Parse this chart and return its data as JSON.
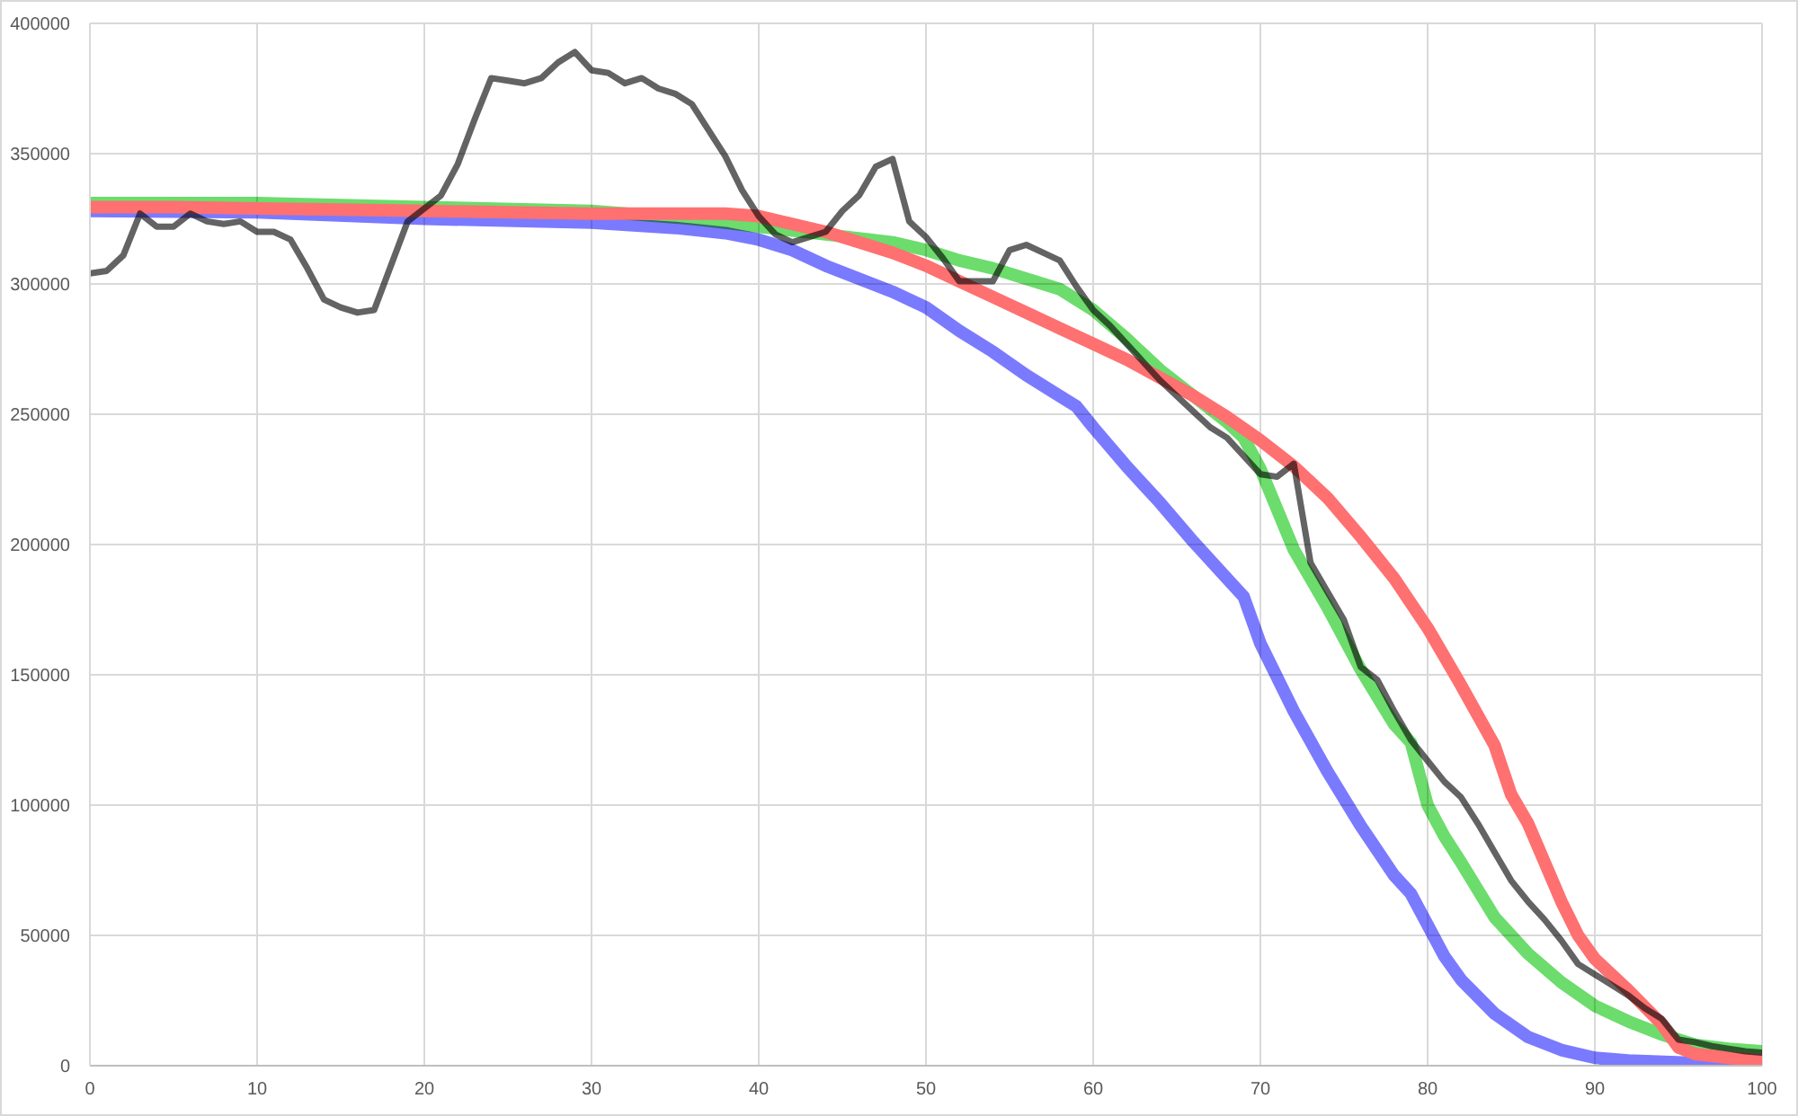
{
  "chart_data": {
    "type": "line",
    "xlim": [
      0,
      100
    ],
    "xticks": [
      0,
      10,
      20,
      30,
      40,
      50,
      60,
      70,
      80,
      90,
      100
    ],
    "ylim": [
      0,
      400000
    ],
    "yticks": [
      0,
      50000,
      100000,
      150000,
      200000,
      250000,
      300000,
      350000,
      400000
    ],
    "grid": true,
    "line_style": "solid",
    "series": [
      {
        "color": "#7a7aff",
        "x": [
          0,
          10,
          20,
          30,
          35,
          38,
          40,
          42,
          44,
          46,
          48,
          50,
          52,
          54,
          56,
          58,
          59,
          60,
          62,
          64,
          66,
          68,
          69,
          70,
          72,
          74,
          76,
          78,
          79,
          80,
          81,
          82,
          84,
          86,
          88,
          90,
          92,
          96,
          100
        ],
        "values": [
          328000,
          327500,
          325000,
          323500,
          321500,
          319500,
          317000,
          313000,
          307000,
          302000,
          297000,
          291000,
          282000,
          274000,
          265000,
          257000,
          253000,
          245000,
          230000,
          216000,
          201000,
          187000,
          180000,
          162000,
          136000,
          113000,
          92000,
          73000,
          66000,
          54000,
          42000,
          33000,
          20000,
          11000,
          6000,
          3000,
          2000,
          1000,
          1000
        ]
      },
      {
        "color": "#6cdc6c",
        "x": [
          0,
          10,
          20,
          30,
          36,
          40,
          44,
          48,
          50,
          52,
          54,
          56,
          58,
          60,
          62,
          64,
          66,
          68,
          69,
          70,
          72,
          74,
          76,
          78,
          79,
          80,
          81,
          82,
          84,
          86,
          88,
          90,
          92,
          94,
          96,
          98,
          100
        ],
        "values": [
          331000,
          331000,
          329500,
          328000,
          325000,
          322000,
          319000,
          316000,
          313000,
          309000,
          306000,
          302000,
          298000,
          290000,
          279000,
          267000,
          257000,
          247000,
          241000,
          229000,
          198000,
          176000,
          152000,
          131000,
          124000,
          100000,
          88000,
          78000,
          57000,
          43000,
          32000,
          23000,
          17000,
          12000,
          8000,
          6500,
          5500
        ]
      },
      {
        "color": "#ff7070",
        "x": [
          0,
          5,
          10,
          15,
          20,
          25,
          30,
          35,
          38,
          40,
          42,
          44,
          46,
          48,
          50,
          52,
          54,
          56,
          58,
          60,
          62,
          64,
          66,
          68,
          70,
          72,
          74,
          76,
          78,
          80,
          82,
          84,
          85,
          86,
          88,
          89,
          90,
          92,
          94,
          95,
          96,
          98,
          100
        ],
        "values": [
          329500,
          329500,
          329000,
          328500,
          328000,
          327500,
          327000,
          327000,
          327000,
          326000,
          323000,
          320000,
          316000,
          312000,
          307000,
          301000,
          295000,
          289000,
          283000,
          277000,
          271000,
          264000,
          257000,
          249000,
          240000,
          230000,
          218000,
          203000,
          187000,
          168000,
          146000,
          123000,
          104000,
          93000,
          63000,
          50000,
          41000,
          29000,
          16000,
          7000,
          4500,
          3000,
          2000
        ]
      },
      {
        "color": "#636363",
        "x": [
          0,
          1,
          2,
          3,
          4,
          5,
          6,
          7,
          8,
          9,
          10,
          11,
          12,
          13,
          14,
          15,
          16,
          17,
          18,
          19,
          20,
          21,
          22,
          23,
          24,
          25,
          26,
          27,
          28,
          29,
          30,
          31,
          32,
          33,
          34,
          35,
          36,
          37,
          38,
          39,
          40,
          41,
          42,
          43,
          44,
          45,
          46,
          47,
          48,
          49,
          50,
          51,
          52,
          53,
          54,
          55,
          56,
          57,
          58,
          59,
          60,
          61,
          62,
          63,
          64,
          65,
          66,
          67,
          68,
          69,
          70,
          71,
          72,
          73,
          74,
          75,
          76,
          77,
          78,
          79,
          80,
          81,
          82,
          83,
          84,
          85,
          86,
          87,
          88,
          89,
          90,
          91,
          92,
          93,
          94,
          95,
          96,
          97,
          98,
          99,
          100
        ],
        "values": [
          304000,
          305000,
          311000,
          327000,
          322000,
          322000,
          327000,
          324000,
          323000,
          324000,
          320000,
          320000,
          317000,
          306000,
          294000,
          291000,
          289000,
          290000,
          307000,
          324000,
          329000,
          334000,
          346000,
          363000,
          379000,
          378000,
          377000,
          379000,
          385000,
          389000,
          382000,
          381000,
          377000,
          379000,
          375000,
          373000,
          369000,
          359000,
          349000,
          336000,
          326000,
          319000,
          316000,
          318000,
          320000,
          328000,
          334000,
          345000,
          348000,
          324000,
          318000,
          310000,
          301000,
          301000,
          301000,
          313000,
          315000,
          312000,
          309000,
          299000,
          290000,
          284000,
          277000,
          270000,
          263000,
          257000,
          251000,
          245000,
          241000,
          234000,
          227000,
          226000,
          231000,
          193000,
          182000,
          171000,
          153000,
          148000,
          136000,
          125000,
          117000,
          109000,
          103000,
          93000,
          82000,
          71000,
          63000,
          56000,
          48000,
          39000,
          35000,
          31000,
          27000,
          22000,
          18000,
          10000,
          9000,
          7500,
          6500,
          5500,
          5000
        ]
      }
    ]
  }
}
